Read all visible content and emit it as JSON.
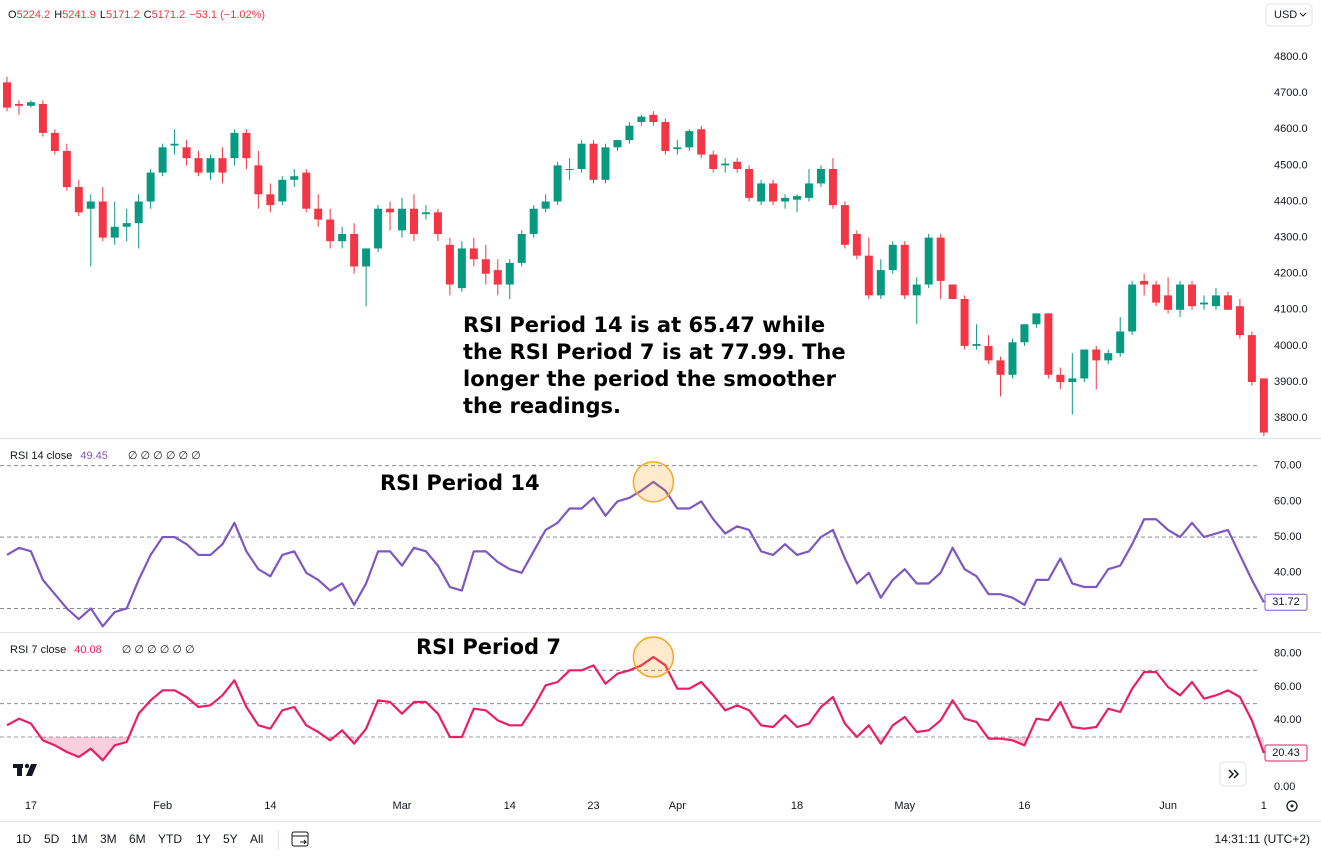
{
  "header": {
    "ohlc": [
      {
        "label": "O",
        "value": "5224.2"
      },
      {
        "label": "H",
        "value": "5241.9"
      },
      {
        "label": "L",
        "value": "5171.2"
      },
      {
        "label": "C",
        "value": "5171.2"
      }
    ],
    "change": "−53.1 (−1.02%)",
    "currency": "USD"
  },
  "toolbar": {
    "ranges": [
      "1D",
      "5D",
      "1M",
      "3M",
      "6M",
      "YTD",
      "1Y",
      "5Y",
      "All"
    ],
    "time": "14:31:11 (UTC+2)"
  },
  "chart_data": [
    {
      "type": "candlestick",
      "up_color": "#089981",
      "down_color": "#f23645",
      "annotation": [
        "RSI Period 14 is at 65.47 while",
        "the RSI Period 7 is at 77.99. The",
        "longer the period the smoother",
        "the readings."
      ],
      "categories": [
        null,
        null,
        "17",
        null,
        null,
        null,
        null,
        null,
        null,
        null,
        null,
        null,
        null,
        "Feb",
        null,
        null,
        null,
        null,
        null,
        null,
        null,
        null,
        "14",
        null,
        null,
        null,
        null,
        null,
        null,
        null,
        null,
        null,
        null,
        "Mar",
        null,
        null,
        null,
        null,
        null,
        null,
        null,
        null,
        "14",
        null,
        null,
        null,
        null,
        null,
        null,
        "23",
        null,
        null,
        null,
        null,
        null,
        null,
        "Apr",
        null,
        null,
        null,
        null,
        null,
        null,
        null,
        null,
        null,
        "18",
        null,
        null,
        null,
        null,
        null,
        null,
        null,
        null,
        "May",
        null,
        null,
        null,
        null,
        null,
        null,
        null,
        null,
        null,
        "16",
        null,
        null,
        null,
        null,
        null,
        null,
        null,
        null,
        null,
        null,
        null,
        "Jun",
        null,
        null,
        null,
        null,
        null,
        null,
        null,
        "1"
      ],
      "ohlc": [
        [
          4730,
          4745,
          4650,
          4660
        ],
        [
          4670,
          4680,
          4640,
          4665
        ],
        [
          4665,
          4680,
          4660,
          4675
        ],
        [
          4670,
          4680,
          4580,
          4590
        ],
        [
          4590,
          4600,
          4530,
          4540
        ],
        [
          4540,
          4560,
          4430,
          4440
        ],
        [
          4440,
          4460,
          4360,
          4370
        ],
        [
          4380,
          4420,
          4220,
          4400
        ],
        [
          4400,
          4440,
          4290,
          4300
        ],
        [
          4300,
          4400,
          4280,
          4330
        ],
        [
          4330,
          4380,
          4290,
          4340
        ],
        [
          4340,
          4420,
          4270,
          4400
        ],
        [
          4400,
          4490,
          4380,
          4480
        ],
        [
          4480,
          4560,
          4470,
          4550
        ],
        [
          4555,
          4600,
          4530,
          4560
        ],
        [
          4550,
          4570,
          4500,
          4520
        ],
        [
          4520,
          4540,
          4470,
          4480
        ],
        [
          4480,
          4530,
          4460,
          4520
        ],
        [
          4520,
          4550,
          4450,
          4480
        ],
        [
          4520,
          4600,
          4500,
          4590
        ],
        [
          4590,
          4600,
          4490,
          4520
        ],
        [
          4500,
          4540,
          4380,
          4420
        ],
        [
          4420,
          4450,
          4370,
          4390
        ],
        [
          4400,
          4470,
          4390,
          4460
        ],
        [
          4460,
          4490,
          4440,
          4470
        ],
        [
          4480,
          4490,
          4370,
          4380
        ],
        [
          4380,
          4420,
          4330,
          4350
        ],
        [
          4350,
          4380,
          4270,
          4290
        ],
        [
          4290,
          4330,
          4270,
          4310
        ],
        [
          4310,
          4340,
          4200,
          4220
        ],
        [
          4220,
          4270,
          4110,
          4270
        ],
        [
          4270,
          4390,
          4260,
          4380
        ],
        [
          4380,
          4400,
          4320,
          4370
        ],
        [
          4320,
          4410,
          4300,
          4380
        ],
        [
          4380,
          4420,
          4290,
          4310
        ],
        [
          4365,
          4390,
          4350,
          4370
        ],
        [
          4370,
          4380,
          4290,
          4310
        ],
        [
          4280,
          4300,
          4140,
          4170
        ],
        [
          4160,
          4290,
          4150,
          4270
        ],
        [
          4270,
          4300,
          4220,
          4240
        ],
        [
          4240,
          4280,
          4170,
          4200
        ],
        [
          4210,
          4240,
          4140,
          4170
        ],
        [
          4170,
          4240,
          4130,
          4230
        ],
        [
          4230,
          4320,
          4220,
          4310
        ],
        [
          4310,
          4390,
          4300,
          4380
        ],
        [
          4380,
          4420,
          4370,
          4400
        ],
        [
          4400,
          4510,
          4390,
          4500
        ],
        [
          4490,
          4520,
          4460,
          4490
        ],
        [
          4490,
          4570,
          4480,
          4560
        ],
        [
          4560,
          4570,
          4450,
          4460
        ],
        [
          4460,
          4560,
          4450,
          4550
        ],
        [
          4550,
          4570,
          4540,
          4570
        ],
        [
          4570,
          4620,
          4560,
          4610
        ],
        [
          4620,
          4640,
          4610,
          4635
        ],
        [
          4640,
          4650,
          4610,
          4620
        ],
        [
          4620,
          4630,
          4530,
          4540
        ],
        [
          4545,
          4570,
          4530,
          4550
        ],
        [
          4550,
          4600,
          4540,
          4595
        ],
        [
          4600,
          4610,
          4520,
          4530
        ],
        [
          4530,
          4540,
          4480,
          4490
        ],
        [
          4500,
          4520,
          4480,
          4505
        ],
        [
          4510,
          4520,
          4480,
          4490
        ],
        [
          4490,
          4500,
          4400,
          4410
        ],
        [
          4400,
          4460,
          4390,
          4450
        ],
        [
          4450,
          4460,
          4390,
          4400
        ],
        [
          4400,
          4420,
          4380,
          4410
        ],
        [
          4405,
          4420,
          4370,
          4415
        ],
        [
          4410,
          4490,
          4400,
          4450
        ],
        [
          4450,
          4500,
          4440,
          4490
        ],
        [
          4490,
          4520,
          4380,
          4390
        ],
        [
          4390,
          4400,
          4270,
          4280
        ],
        [
          4310,
          4320,
          4240,
          4250
        ],
        [
          4250,
          4300,
          4130,
          4140
        ],
        [
          4140,
          4240,
          4130,
          4210
        ],
        [
          4210,
          4290,
          4200,
          4280
        ],
        [
          4280,
          4290,
          4130,
          4140
        ],
        [
          4140,
          4190,
          4060,
          4170
        ],
        [
          4170,
          4310,
          4160,
          4300
        ],
        [
          4300,
          4310,
          4130,
          4180
        ],
        [
          4170,
          4170,
          4130,
          4130
        ],
        [
          4130,
          4140,
          3990,
          4000
        ],
        [
          4000,
          4060,
          3990,
          4005
        ],
        [
          4000,
          4030,
          3950,
          3960
        ],
        [
          3960,
          3970,
          3860,
          3920
        ],
        [
          3920,
          4020,
          3910,
          4010
        ],
        [
          4010,
          4060,
          4000,
          4060
        ],
        [
          4060,
          4090,
          4050,
          4090
        ],
        [
          4090,
          4090,
          3910,
          3920
        ],
        [
          3920,
          3940,
          3880,
          3900
        ],
        [
          3900,
          3980,
          3810,
          3910
        ],
        [
          3910,
          3990,
          3900,
          3990
        ],
        [
          3990,
          4000,
          3880,
          3960
        ],
        [
          3960,
          3990,
          3950,
          3980
        ],
        [
          3980,
          4080,
          3970,
          4040
        ],
        [
          4040,
          4180,
          4030,
          4170
        ],
        [
          4180,
          4200,
          4140,
          4170
        ],
        [
          4170,
          4180,
          4110,
          4120
        ],
        [
          4140,
          4190,
          4090,
          4100
        ],
        [
          4100,
          4180,
          4080,
          4170
        ],
        [
          4170,
          4180,
          4100,
          4110
        ],
        [
          4115,
          4140,
          4100,
          4120
        ],
        [
          4110,
          4160,
          4100,
          4140
        ],
        [
          4140,
          4150,
          4100,
          4100
        ],
        [
          4110,
          4130,
          4020,
          4030
        ],
        [
          4030,
          4040,
          3890,
          3900
        ],
        [
          3910,
          3910,
          3750,
          3760
        ]
      ],
      "ylim": [
        3745,
        4958
      ],
      "yticks": [
        {
          "value": 3800,
          "label": "3800.0"
        },
        {
          "value": 3900,
          "label": "3900.0"
        },
        {
          "value": 4000,
          "label": "4000.0"
        },
        {
          "value": 4100,
          "label": "4100.0"
        },
        {
          "value": 4200,
          "label": "4200.0"
        },
        {
          "value": 4300,
          "label": "4300.0"
        },
        {
          "value": 4400,
          "label": "4400.0"
        },
        {
          "value": 4500,
          "label": "4500.0"
        },
        {
          "value": 4600,
          "label": "4600.0"
        },
        {
          "value": 4700,
          "label": "4700.0"
        },
        {
          "value": 4800,
          "label": "4800.0"
        }
      ]
    },
    {
      "type": "line",
      "name": "RSI 14 close",
      "legend_value": 49.45,
      "legend_icons": "∅ ∅ ∅ ∅ ∅ ∅",
      "color": "#7e57c2",
      "annotation": "RSI Period 14",
      "values": [
        45,
        47,
        46,
        38,
        34,
        30,
        27,
        30,
        25,
        29,
        30,
        38,
        45,
        50,
        50,
        48,
        45,
        45,
        48,
        54,
        46,
        41,
        39,
        45,
        46,
        40,
        38,
        35,
        37,
        31,
        37,
        46,
        46,
        42,
        47,
        46,
        42,
        36,
        35,
        46,
        46,
        43,
        41,
        40,
        46,
        52,
        54,
        58,
        58,
        61,
        56,
        60,
        61,
        63,
        65.47,
        63,
        58,
        58,
        60,
        55,
        51,
        53,
        52,
        46,
        45,
        48,
        45,
        46,
        50,
        52,
        44,
        37,
        40,
        33,
        38,
        41,
        37,
        37,
        40,
        47,
        41,
        39,
        34,
        34,
        33,
        31,
        38,
        38,
        44,
        37,
        36,
        36,
        41,
        42,
        48,
        55,
        55,
        52,
        50,
        54,
        50,
        51,
        52,
        45,
        38,
        31.72
      ],
      "ylim": [
        23.4,
        77.2
      ],
      "levels": [
        70,
        50,
        30
      ],
      "yticks": [
        {
          "value": 40,
          "label": "40.00"
        },
        {
          "value": 50,
          "label": "50.00"
        },
        {
          "value": 60,
          "label": "60.00"
        },
        {
          "value": 70,
          "label": "70.00"
        }
      ]
    },
    {
      "type": "line",
      "name": "RSI 7 close",
      "legend_value": 40.08,
      "legend_icons": "∅ ∅ ∅ ∅ ∅ ∅",
      "color": "#e91e63",
      "annotation": "RSI Period 7",
      "oversold_fill": true,
      "values": [
        37,
        41,
        38,
        28,
        25,
        21,
        18,
        23,
        16,
        25,
        27,
        44,
        52,
        58,
        58,
        54,
        48,
        49,
        55,
        64,
        48,
        37,
        35,
        46,
        48,
        37,
        33,
        28,
        34,
        26,
        35,
        52,
        51,
        44,
        51,
        51,
        44,
        30,
        30,
        47,
        46,
        40,
        37,
        37,
        48,
        61,
        63,
        70,
        70,
        73,
        62,
        68,
        70,
        73,
        77.99,
        73,
        59,
        59,
        63,
        55,
        46,
        49,
        46,
        37,
        36,
        43,
        36,
        38,
        48,
        54,
        38,
        30,
        37,
        26,
        37,
        42,
        33,
        34,
        40,
        52,
        41,
        39,
        29,
        29,
        28,
        25,
        41,
        40,
        51,
        36,
        35,
        36,
        47,
        45,
        59,
        69,
        69,
        60,
        55,
        63,
        53,
        55,
        58,
        54,
        40,
        20.43
      ],
      "ylim": [
        -4.8,
        91.8
      ],
      "levels": [
        70,
        50,
        30
      ],
      "yticks": [
        {
          "value": 0,
          "label": "0.00"
        },
        {
          "value": 20,
          "label": "20.00"
        },
        {
          "value": 40,
          "label": "40.00"
        },
        {
          "value": 60,
          "label": "60.00"
        },
        {
          "value": 80,
          "label": "80.00"
        }
      ]
    }
  ]
}
